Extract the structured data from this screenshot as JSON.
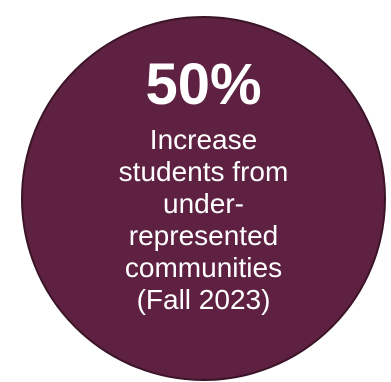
{
  "badge": {
    "stat": "50%",
    "description": "Increase\nstudents from\nunder-\nrepresented\ncommunities\n(Fall 2023)",
    "background_color": "#5e2141",
    "text_color": "#ffffff"
  }
}
